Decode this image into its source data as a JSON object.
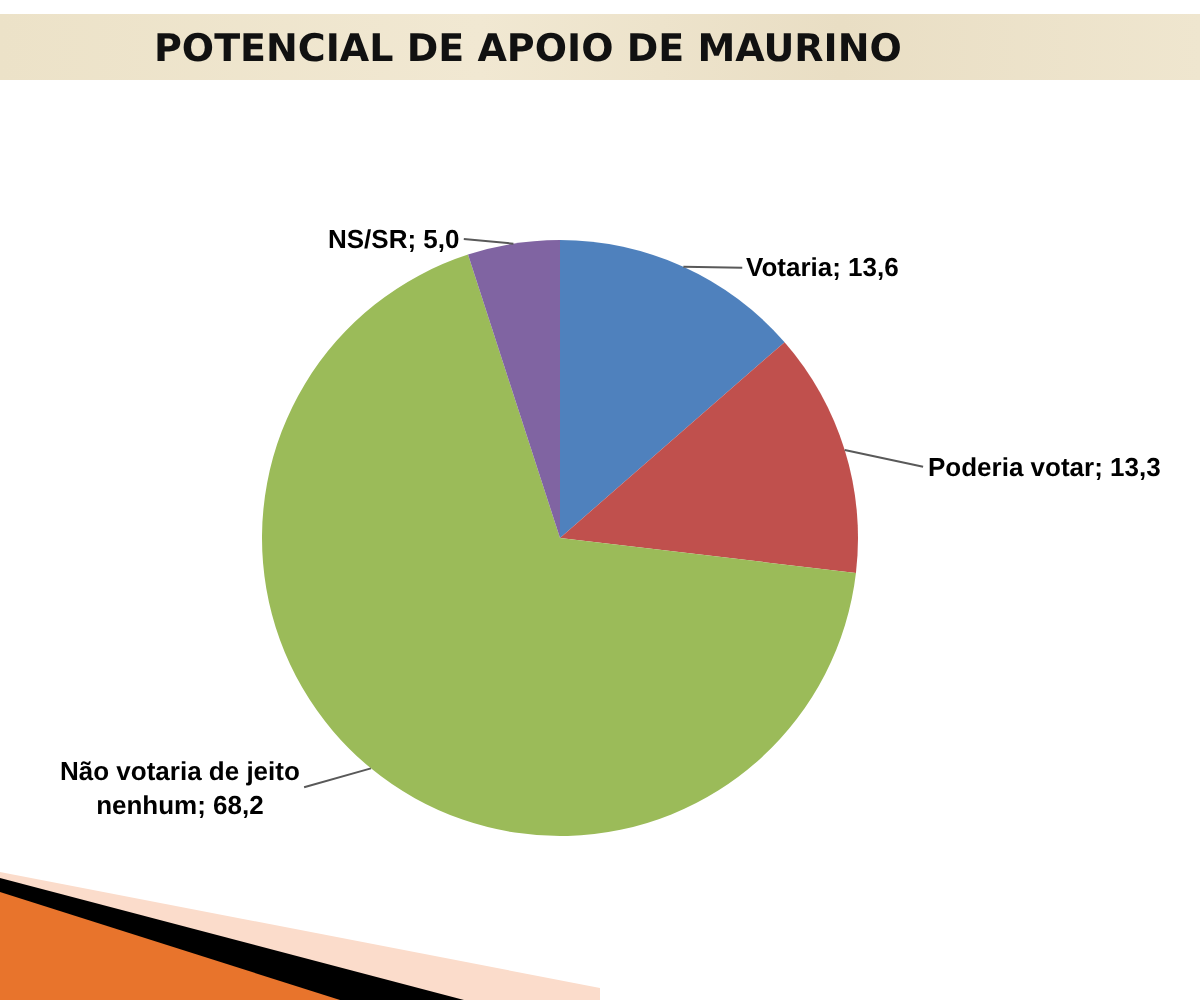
{
  "chart_data": {
    "type": "pie",
    "title": "POTENCIAL DE APOIO DE MAURINO",
    "categories": [
      "Votaria",
      "Poderia votar",
      "Não votaria de jeito nenhum",
      "NS/SR"
    ],
    "values": [
      13.6,
      13.3,
      68.2,
      5.0
    ],
    "colors": [
      "#4f81bd",
      "#c0504d",
      "#9bbb59",
      "#8064a2"
    ],
    "value_labels": [
      "13,6",
      "13,3",
      "68,2",
      "5,0"
    ]
  }
}
